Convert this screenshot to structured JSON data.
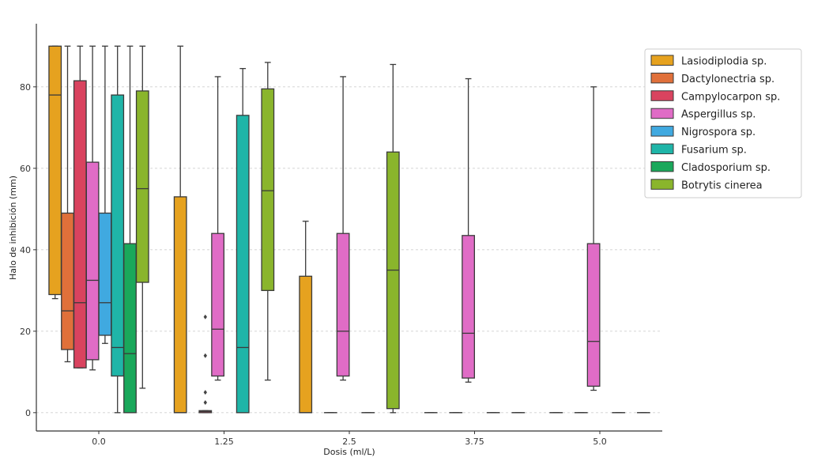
{
  "chart_data": {
    "type": "box",
    "xlabel": "Dosis (ml/L)",
    "ylabel": "Halo de inhibición (mm)",
    "ylim": [
      -4.5,
      95.5
    ],
    "yticks": [
      0,
      20,
      40,
      60,
      80
    ],
    "categories": [
      "0.0",
      "1.25",
      "2.5",
      "3.75",
      "5.0"
    ],
    "grid": "horizontal dashed",
    "legend_position": "top-right",
    "series": [
      {
        "name": "Lasiodiplodia sp.",
        "color": "#e6a21f",
        "boxes": [
          {
            "whisker_low": 28,
            "q1": 29,
            "median": 78,
            "q3": 90,
            "whisker_high": 90,
            "outliers": []
          },
          {
            "whisker_low": 0,
            "q1": 0,
            "median": 0,
            "q3": 53,
            "whisker_high": 90,
            "outliers": []
          },
          {
            "whisker_low": 0,
            "q1": 0,
            "median": 0,
            "q3": 33.5,
            "whisker_high": 47,
            "outliers": []
          },
          {
            "whisker_low": 0,
            "q1": 0,
            "median": 0,
            "q3": 0,
            "whisker_high": 0,
            "outliers": []
          },
          {
            "whisker_low": 0,
            "q1": 0,
            "median": 0,
            "q3": 0,
            "whisker_high": 0,
            "outliers": []
          }
        ]
      },
      {
        "name": "Dactylonectria sp.",
        "color": "#e0703a",
        "boxes": [
          {
            "whisker_low": 12.5,
            "q1": 15.5,
            "median": 25,
            "q3": 49,
            "whisker_high": 90,
            "outliers": []
          },
          null,
          null,
          null,
          null
        ]
      },
      {
        "name": "Campylocarpon sp.",
        "color": "#d9435f",
        "boxes": [
          {
            "whisker_low": 11,
            "q1": 11,
            "median": 27,
            "q3": 81.5,
            "whisker_high": 90,
            "outliers": []
          },
          {
            "whisker_low": 0,
            "q1": 0,
            "median": 0.3,
            "q3": 0.5,
            "whisker_high": 0.5,
            "outliers": [
              2.5,
              5,
              14,
              23.5
            ]
          },
          {
            "whisker_low": 0,
            "q1": 0,
            "median": 0,
            "q3": 0,
            "whisker_high": 0,
            "outliers": []
          },
          {
            "whisker_low": 0,
            "q1": 0,
            "median": 0,
            "q3": 0,
            "whisker_high": 0,
            "outliers": []
          },
          {
            "whisker_low": 0,
            "q1": 0,
            "median": 0,
            "q3": 0,
            "whisker_high": 0,
            "outliers": []
          }
        ]
      },
      {
        "name": "Aspergillus sp.",
        "color": "#e06cc6",
        "boxes": [
          {
            "whisker_low": 10.5,
            "q1": 13,
            "median": 32.5,
            "q3": 61.5,
            "whisker_high": 90,
            "outliers": []
          },
          {
            "whisker_low": 8,
            "q1": 9,
            "median": 20.5,
            "q3": 44,
            "whisker_high": 82.5,
            "outliers": []
          },
          {
            "whisker_low": 8,
            "q1": 9,
            "median": 20,
            "q3": 44,
            "whisker_high": 82.5,
            "outliers": []
          },
          {
            "whisker_low": 7.5,
            "q1": 8.5,
            "median": 19.5,
            "q3": 43.5,
            "whisker_high": 82,
            "outliers": []
          },
          {
            "whisker_low": 5.5,
            "q1": 6.5,
            "median": 17.5,
            "q3": 41.5,
            "whisker_high": 80,
            "outliers": []
          }
        ]
      },
      {
        "name": "Nigrospora sp.",
        "color": "#40a9e0",
        "boxes": [
          {
            "whisker_low": 17,
            "q1": 19,
            "median": 27,
            "q3": 49,
            "whisker_high": 90,
            "outliers": []
          },
          null,
          null,
          null,
          null
        ]
      },
      {
        "name": "Fusarium sp.",
        "color": "#1fb5a8",
        "boxes": [
          {
            "whisker_low": 0,
            "q1": 9,
            "median": 16,
            "q3": 78,
            "whisker_high": 90,
            "outliers": []
          },
          {
            "whisker_low": 0,
            "q1": 0,
            "median": 16,
            "q3": 73,
            "whisker_high": 84.5,
            "outliers": []
          },
          {
            "whisker_low": 0,
            "q1": 0,
            "median": 0,
            "q3": 0,
            "whisker_high": 0,
            "outliers": []
          },
          {
            "whisker_low": 0,
            "q1": 0,
            "median": 0,
            "q3": 0,
            "whisker_high": 0,
            "outliers": []
          },
          {
            "whisker_low": 0,
            "q1": 0,
            "median": 0,
            "q3": 0,
            "whisker_high": 0,
            "outliers": []
          }
        ]
      },
      {
        "name": "Cladosporium sp.",
        "color": "#1aa85b",
        "boxes": [
          {
            "whisker_low": 0,
            "q1": 0,
            "median": 14.5,
            "q3": 41.5,
            "whisker_high": 90,
            "outliers": []
          },
          null,
          null,
          null,
          null
        ]
      },
      {
        "name": "Botrytis cinerea",
        "color": "#8ab52c",
        "boxes": [
          {
            "whisker_low": 6,
            "q1": 32,
            "median": 55,
            "q3": 79,
            "whisker_high": 90,
            "outliers": []
          },
          {
            "whisker_low": 8,
            "q1": 30,
            "median": 54.5,
            "q3": 79.5,
            "whisker_high": 86,
            "outliers": []
          },
          {
            "whisker_low": 0,
            "q1": 1,
            "median": 35,
            "q3": 64,
            "whisker_high": 85.5,
            "outliers": []
          },
          {
            "whisker_low": 0,
            "q1": 0,
            "median": 0,
            "q3": 0,
            "whisker_high": 0,
            "outliers": []
          },
          {
            "whisker_low": 0,
            "q1": 0,
            "median": 0,
            "q3": 0,
            "whisker_high": 0,
            "outliers": []
          }
        ]
      }
    ]
  }
}
